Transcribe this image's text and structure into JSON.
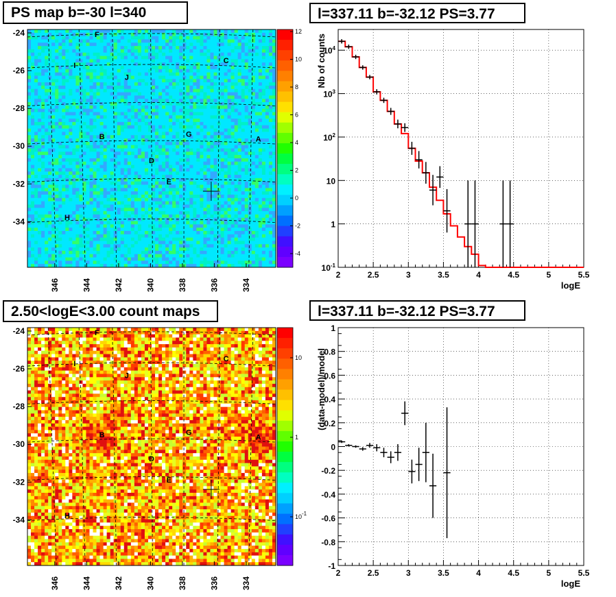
{
  "panels": {
    "tl_title": "PS map b=-30 l=340",
    "tr_title": "l=337.11 b=-32.12 PS=3.77",
    "bl_title": "2.50<logE<3.00 count maps",
    "br_title": "l=337.11 b=-32.12 PS=3.77"
  },
  "colors": {
    "model_line": "#ff0000",
    "data": "#000000",
    "grid": "#000000"
  },
  "chart_data": [
    {
      "type": "heatmap",
      "title": "PS map b=-30 l=340",
      "x_ticks": [
        "346",
        "344",
        "342",
        "340",
        "338",
        "336",
        "334"
      ],
      "y_ticks": [
        "-24",
        "-26",
        "-28",
        "-30",
        "-32",
        "-34"
      ],
      "colorbar_ticks": [
        "12",
        "10",
        "8",
        "6",
        "4",
        "2",
        "0",
        "-2",
        "-4"
      ],
      "colorbar_range": [
        -5,
        12
      ],
      "sources": [
        "F",
        "C",
        "I",
        "J",
        "B",
        "G",
        "A",
        "D",
        "E",
        "H"
      ]
    },
    {
      "type": "line",
      "title": "l=337.11 b=-32.12 PS=3.77",
      "xlabel": "logE",
      "ylabel": "Nb of counts",
      "xlim": [
        2,
        5.5
      ],
      "ylim_log": [
        0.1,
        30000
      ],
      "log_y": true,
      "x_ticks": [
        "2",
        "2.5",
        "3",
        "3.5",
        "4",
        "4.5",
        "5",
        "5.5"
      ],
      "y_ticks": [
        "10^4",
        "10^3",
        "10^2",
        "10",
        "1",
        "10^-1"
      ],
      "model_edges": [
        2.0,
        2.1,
        2.2,
        2.3,
        2.4,
        2.5,
        2.6,
        2.7,
        2.8,
        2.9,
        3.0,
        3.1,
        3.2,
        3.3,
        3.4,
        3.5,
        3.6,
        3.7,
        3.8,
        3.9,
        4.0,
        4.1,
        5.5
      ],
      "model_values": [
        16000,
        12000,
        7000,
        4000,
        2400,
        1100,
        700,
        390,
        200,
        120,
        55,
        28,
        15,
        7,
        3.5,
        1.7,
        0.9,
        0.5,
        0.3,
        0.2,
        0.11,
        0.1
      ],
      "data_x": [
        2.05,
        2.15,
        2.25,
        2.35,
        2.45,
        2.55,
        2.65,
        2.75,
        2.85,
        2.95,
        3.05,
        3.15,
        3.25,
        3.35,
        3.45,
        3.55,
        3.85,
        3.95,
        4.35,
        4.45
      ],
      "data_y": [
        16000,
        12000,
        7000,
        4000,
        2400,
        1100,
        700,
        390,
        200,
        165,
        55,
        30,
        15,
        6,
        12,
        2,
        1,
        1,
        1,
        1
      ]
    },
    {
      "type": "heatmap",
      "title": "2.50<logE<3.00 count maps",
      "x_ticks": [
        "346",
        "344",
        "342",
        "340",
        "338",
        "336",
        "334"
      ],
      "y_ticks": [
        "-24",
        "-26",
        "-28",
        "-30",
        "-32",
        "-34"
      ],
      "colorbar_ticks": [
        "10",
        "1",
        "10^-1"
      ],
      "log_scale": true,
      "sources": [
        "F",
        "C",
        "I",
        "J",
        "B",
        "G",
        "A",
        "D",
        "E",
        "H"
      ]
    },
    {
      "type": "scatter",
      "title": "l=337.11 b=-32.12 PS=3.77",
      "xlabel": "logE",
      "ylabel": "(data-model)/model",
      "xlim": [
        2,
        5.5
      ],
      "ylim": [
        -1,
        1
      ],
      "x_ticks": [
        "2",
        "2.5",
        "3",
        "3.5",
        "4",
        "4.5",
        "5",
        "5.5"
      ],
      "y_ticks": [
        "1",
        "0.8",
        "0.6",
        "0.4",
        "0.2",
        "0",
        "-0.2",
        "-0.4",
        "-0.6",
        "-0.8",
        "-1"
      ],
      "x": [
        2.05,
        2.15,
        2.25,
        2.35,
        2.45,
        2.55,
        2.65,
        2.75,
        2.85,
        2.95,
        3.05,
        3.15,
        3.25,
        3.35,
        3.55
      ],
      "y": [
        0.04,
        0.01,
        0.0,
        -0.02,
        0.01,
        -0.01,
        -0.05,
        -0.09,
        -0.05,
        0.28,
        -0.21,
        -0.15,
        -0.05,
        -0.33,
        -0.22
      ],
      "err": [
        0.01,
        0.01,
        0.01,
        0.015,
        0.02,
        0.03,
        0.04,
        0.05,
        0.07,
        0.1,
        0.1,
        0.14,
        0.25,
        0.27,
        0.55
      ]
    }
  ]
}
